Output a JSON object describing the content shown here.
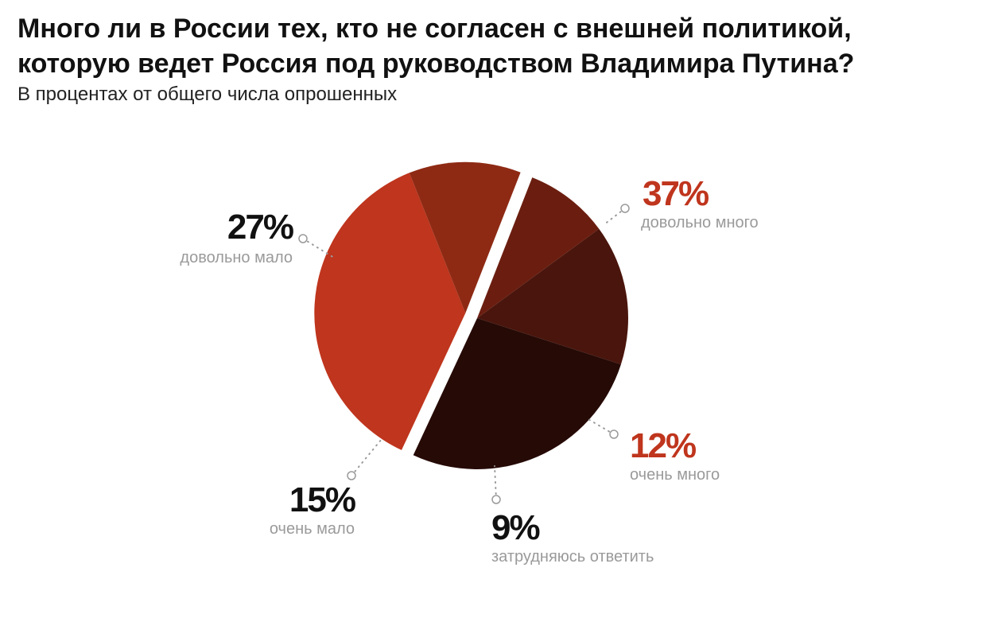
{
  "header": {
    "title_line1": "Много ли в России тех, кто не согласен с внешней политикой,",
    "title_line2": "которую ведет Россия под руководством Владимира Путина?",
    "subtitle": "В процентах от общего числа опрошенных"
  },
  "chart_data": {
    "type": "pie",
    "title": "Много ли в России тех, кто не согласен с внешней политикой, которую ведет Россия под руководством Владимира Путина?",
    "subtitle": "В процентах от общего числа опрошенных",
    "slices": [
      {
        "label": "довольно много",
        "value": 37,
        "display": "37%",
        "color": "#bf351d",
        "label_color": "#bf351d"
      },
      {
        "label": "очень много",
        "value": 12,
        "display": "12%",
        "color": "#8e2a14",
        "label_color": "#bf351d"
      },
      {
        "label": "затрудняюсь ответить",
        "value": 9,
        "display": "9%",
        "color": "#6b1e10",
        "label_color": "#111111"
      },
      {
        "label": "очень мало",
        "value": 15,
        "display": "15%",
        "color": "#4a150c",
        "label_color": "#111111"
      },
      {
        "label": "довольно мало",
        "value": 27,
        "display": "27%",
        "color": "#260a06",
        "label_color": "#111111"
      }
    ],
    "exploded_slices": [
      "довольно много",
      "очень много"
    ]
  }
}
